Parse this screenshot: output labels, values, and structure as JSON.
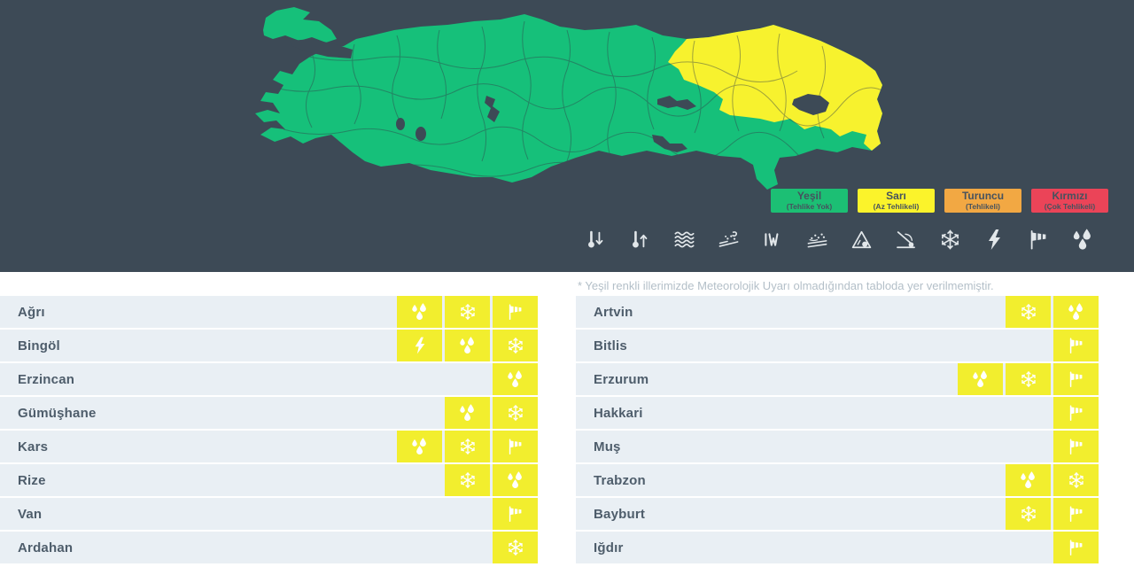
{
  "note": "* Yeşil renkli illerimizde Meteorolojik Uyarı olmadığından tabloda yer verilmemiştir.",
  "colors": {
    "panel_background": "#3d4a56",
    "map_safe_green": "#16c07a",
    "map_warning_yellow": "#f7f22e",
    "map_lake": "#3d4a56",
    "warning_cell_yellow": "#f2ee2e",
    "row_background": "#e9eff4",
    "row_text": "#4e5d6b"
  },
  "legend": {
    "items": [
      {
        "id": "green",
        "label": "Yeşil",
        "sublabel": "(Tehlike Yok)",
        "color": "#1cbf74"
      },
      {
        "id": "yellow",
        "label": "Sarı",
        "sublabel": "(Az Tehlikeli)",
        "color": "#fbf32b"
      },
      {
        "id": "orange",
        "label": "Turuncu",
        "sublabel": "(Tehlikeli)",
        "color": "#f2a843"
      },
      {
        "id": "red",
        "label": "Kırmızı",
        "sublabel": "(Çok Tehlikeli)",
        "color": "#eb4458"
      }
    ]
  },
  "warning_types": [
    {
      "id": "temp-down",
      "name": "temperature-drop"
    },
    {
      "id": "temp-up",
      "name": "temperature-rise"
    },
    {
      "id": "fog",
      "name": "fog"
    },
    {
      "id": "dust",
      "name": "dust-storm"
    },
    {
      "id": "frost",
      "name": "frost"
    },
    {
      "id": "blizzard",
      "name": "blowing-snow"
    },
    {
      "id": "avalanche",
      "name": "avalanche"
    },
    {
      "id": "rockfall",
      "name": "rockfall"
    },
    {
      "id": "snow",
      "name": "snow"
    },
    {
      "id": "thunder",
      "name": "thunderstorm"
    },
    {
      "id": "wind",
      "name": "wind"
    },
    {
      "id": "rain",
      "name": "rain"
    }
  ],
  "tables": {
    "left": [
      {
        "province": "Ağrı",
        "warnings": [
          "rain",
          "snow",
          "wind"
        ]
      },
      {
        "province": "Bingöl",
        "warnings": [
          "thunder",
          "rain",
          "snow"
        ]
      },
      {
        "province": "Erzincan",
        "warnings": [
          "rain"
        ]
      },
      {
        "province": "Gümüşhane",
        "warnings": [
          "rain",
          "snow"
        ]
      },
      {
        "province": "Kars",
        "warnings": [
          "rain",
          "snow",
          "wind"
        ]
      },
      {
        "province": "Rize",
        "warnings": [
          "snow",
          "rain"
        ]
      },
      {
        "province": "Van",
        "warnings": [
          "wind"
        ]
      },
      {
        "province": "Ardahan",
        "warnings": [
          "snow"
        ]
      }
    ],
    "right": [
      {
        "province": "Artvin",
        "warnings": [
          "snow",
          "rain"
        ]
      },
      {
        "province": "Bitlis",
        "warnings": [
          "wind"
        ]
      },
      {
        "province": "Erzurum",
        "warnings": [
          "rain",
          "snow",
          "wind"
        ]
      },
      {
        "province": "Hakkari",
        "warnings": [
          "wind"
        ]
      },
      {
        "province": "Muş",
        "warnings": [
          "wind"
        ]
      },
      {
        "province": "Trabzon",
        "warnings": [
          "rain",
          "snow"
        ]
      },
      {
        "province": "Bayburt",
        "warnings": [
          "snow",
          "wind"
        ]
      },
      {
        "province": "Iğdır",
        "warnings": [
          "wind"
        ]
      }
    ]
  }
}
